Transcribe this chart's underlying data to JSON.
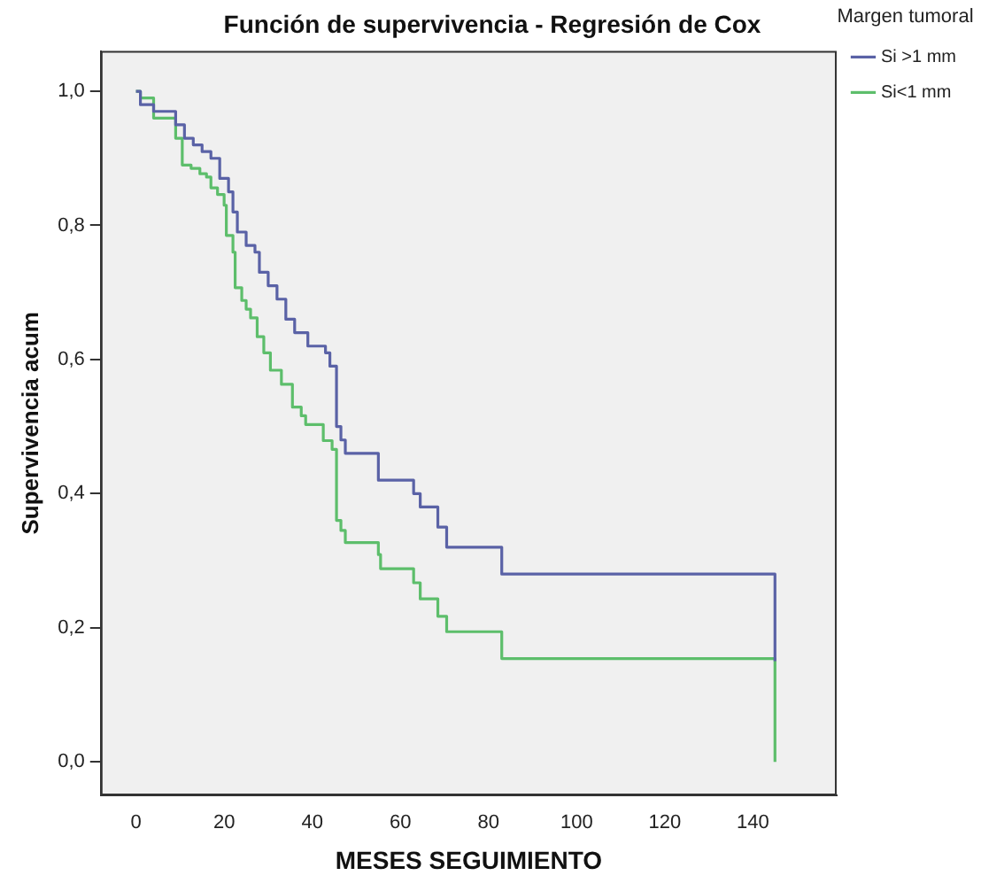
{
  "chart_data": {
    "type": "step",
    "title": "Función de supervivencia - Regresión de Cox",
    "xlabel": "MESES SEGUIMIENTO",
    "ylabel": "Supervivencia acum",
    "legend_title": "Margen tumoral",
    "legend": "top right",
    "grid": false,
    "marker": "none",
    "line_style": "solid",
    "xlim": [
      -8,
      159
    ],
    "xticks": [
      0,
      20,
      40,
      60,
      80,
      100,
      120,
      140
    ],
    "ylim": [
      -0.05,
      1.06
    ],
    "yticks": [
      {
        "value": 0,
        "label": "0,0"
      },
      {
        "value": 0.2,
        "label": "0,2"
      },
      {
        "value": 0.4,
        "label": "0,4"
      },
      {
        "value": 0.6,
        "label": "0,6"
      },
      {
        "value": 0.8,
        "label": "0,8"
      },
      {
        "value": 1,
        "label": "1,0"
      }
    ],
    "series": [
      {
        "name": "Si >1 mm",
        "color": "#5a62a6",
        "x": [
          0,
          1,
          4,
          9,
          11,
          13,
          15,
          17,
          19,
          21,
          22,
          23,
          25,
          27,
          28,
          30,
          32,
          34,
          36,
          39,
          43,
          44,
          45.5,
          46.5,
          47.5,
          55,
          63,
          64.5,
          68.5,
          70.5,
          83,
          145
        ],
        "values": [
          1,
          0.98,
          0.97,
          0.95,
          0.93,
          0.92,
          0.91,
          0.9,
          0.87,
          0.85,
          0.82,
          0.79,
          0.77,
          0.76,
          0.73,
          0.71,
          0.69,
          0.66,
          0.64,
          0.62,
          0.61,
          0.59,
          0.5,
          0.48,
          0.46,
          0.42,
          0.4,
          0.38,
          0.35,
          0.32,
          0.28,
          0.15
        ]
      },
      {
        "name": "Si<1 mm",
        "color": "#5dbe6b",
        "x": [
          0,
          1,
          4,
          9,
          10.5,
          12.5,
          14.5,
          16,
          17,
          18.5,
          20,
          20.5,
          22,
          22.5,
          24,
          25,
          26,
          27.5,
          29,
          30.5,
          33,
          35.5,
          37.5,
          38.5,
          42.5,
          44.5,
          45.5,
          46.5,
          47.5,
          55,
          55.5,
          63,
          64.5,
          68.5,
          70.5,
          83,
          145
        ],
        "values": [
          1,
          0.99,
          0.96,
          0.93,
          0.89,
          0.885,
          0.877,
          0.872,
          0.856,
          0.846,
          0.83,
          0.785,
          0.76,
          0.707,
          0.688,
          0.675,
          0.662,
          0.634,
          0.61,
          0.584,
          0.563,
          0.529,
          0.516,
          0.503,
          0.479,
          0.466,
          0.36,
          0.345,
          0.327,
          0.309,
          0.288,
          0.267,
          0.243,
          0.217,
          0.194,
          0.154,
          0
        ]
      }
    ]
  }
}
